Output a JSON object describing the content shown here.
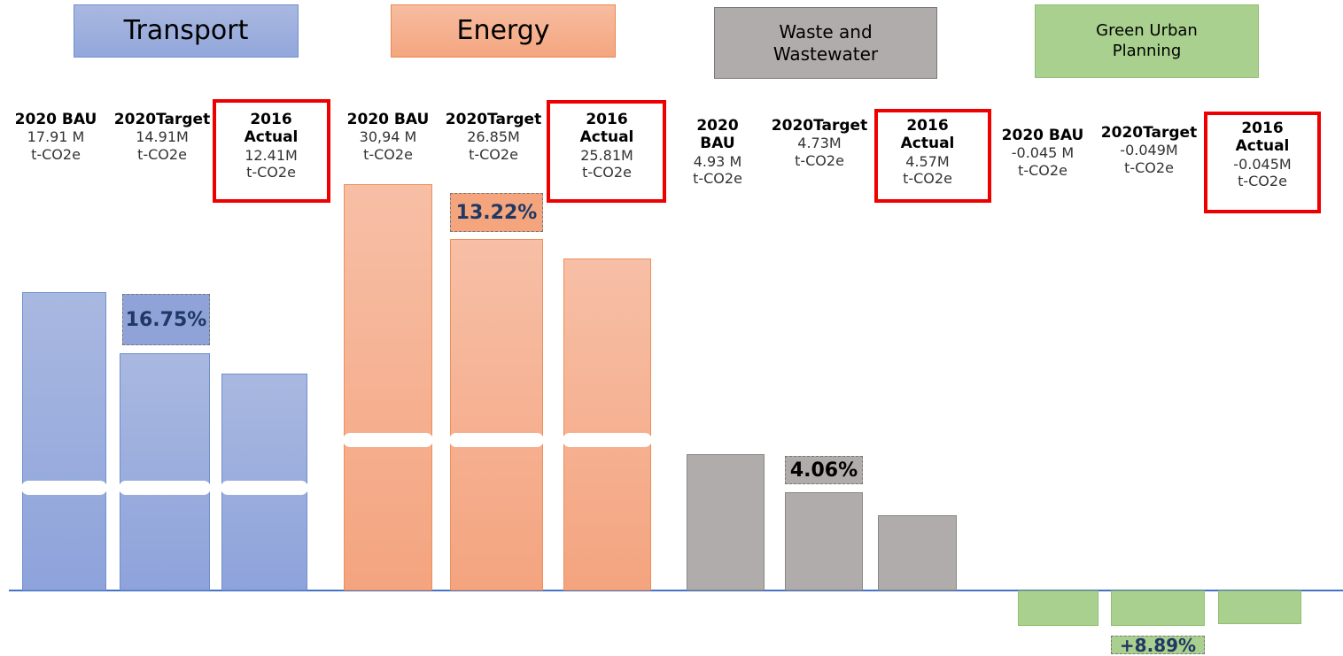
{
  "groups": [
    {
      "title": [
        "Transport"
      ],
      "items": [
        {
          "label": [
            "2020 BAU"
          ],
          "value": "17.91 M",
          "unit": "t-CO2e"
        },
        {
          "label": [
            "2020Target"
          ],
          "value": "14.91M",
          "unit": "t-CO2e"
        },
        {
          "label": [
            "2016",
            "Actual"
          ],
          "value": "12.41M",
          "unit": "t-CO2e"
        }
      ],
      "percent": "16.75%"
    },
    {
      "title": [
        "Energy"
      ],
      "items": [
        {
          "label": [
            "2020 BAU"
          ],
          "value": "30,94 M",
          "unit": "t-CO2e"
        },
        {
          "label": [
            "2020Target"
          ],
          "value": "26.85M",
          "unit": "t-CO2e"
        },
        {
          "label": [
            "2016",
            "Actual"
          ],
          "value": "25.81M",
          "unit": "t-CO2e"
        }
      ],
      "percent": "13.22%"
    },
    {
      "title": [
        "Waste and",
        "Wastewater"
      ],
      "items": [
        {
          "label": [
            "2020",
            "BAU"
          ],
          "value": "4.93 M",
          "unit": "t-CO2e"
        },
        {
          "label": [
            "2020Target"
          ],
          "value": "4.73M",
          "unit": "t-CO2e"
        },
        {
          "label": [
            "2016",
            "Actual"
          ],
          "value": "4.57M",
          "unit": "t-CO2e"
        }
      ],
      "percent": "4.06%"
    },
    {
      "title": [
        "Green Urban",
        "Planning"
      ],
      "items": [
        {
          "label": [
            "2020 BAU"
          ],
          "value": "-0.045 M",
          "unit": "t-CO2e"
        },
        {
          "label": [
            "2020Target"
          ],
          "value": "-0.049M",
          "unit": "t-CO2e"
        },
        {
          "label": [
            "2016",
            "Actual"
          ],
          "value": "-0.045M",
          "unit": "t-CO2e"
        }
      ],
      "percent": "+8.89%"
    }
  ]
}
